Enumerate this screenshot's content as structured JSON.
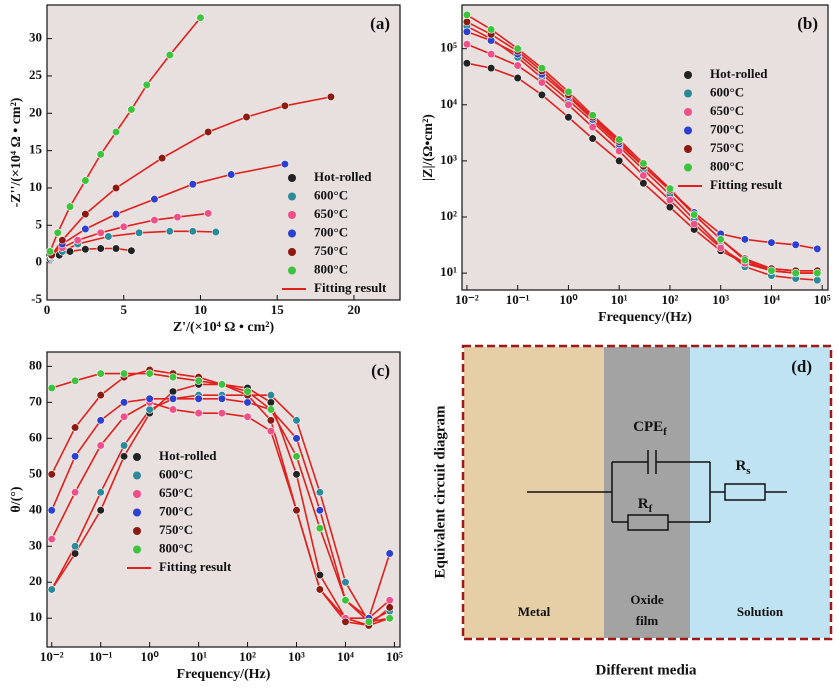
{
  "chart_data": [
    {
      "type": "scatter",
      "panel": "(a)",
      "x_label": "Z'/(×10⁴ Ω • cm²)",
      "y_label": "-Z''/(×10⁴ Ω • cm²)",
      "xlim": [
        0,
        23
      ],
      "ylim": [
        -5,
        34.5
      ],
      "xticks": [
        0,
        5,
        10,
        15,
        20
      ],
      "yticks": [
        -5,
        0,
        5,
        10,
        15,
        20,
        25,
        30
      ],
      "legend": "lower right",
      "fit_name": "Fitting result",
      "fit_color": "#e0201c",
      "series": [
        {
          "name": "Hot-rolled",
          "color": "#222222",
          "x": [
            0.2,
            0.8,
            1.5,
            2.5,
            3.5,
            4.5,
            5.5
          ],
          "y": [
            0.5,
            1.0,
            1.5,
            1.8,
            1.9,
            1.9,
            1.6
          ]
        },
        {
          "name": "600°C",
          "color": "#2a8a9a",
          "x": [
            0.3,
            1,
            2,
            4,
            6,
            8,
            9.5,
            11
          ],
          "y": [
            0.6,
            1.5,
            2.5,
            3.5,
            4,
            4.2,
            4.2,
            4.1
          ]
        },
        {
          "name": "650°C",
          "color": "#f0508a",
          "x": [
            0.3,
            1,
            2,
            3.5,
            5,
            7,
            8.5,
            10.5
          ],
          "y": [
            0.8,
            2,
            3,
            4,
            4.8,
            5.7,
            6.1,
            6.6
          ]
        },
        {
          "name": "700°C",
          "color": "#2b3fd0",
          "x": [
            0.3,
            1,
            2.5,
            4.5,
            7,
            9.5,
            12,
            15.5
          ],
          "y": [
            0.9,
            2.5,
            4.5,
            6.5,
            8.5,
            10.5,
            11.8,
            13.2
          ]
        },
        {
          "name": "750°C",
          "color": "#8b1a10",
          "x": [
            0.3,
            1,
            2.5,
            4.5,
            7.5,
            10.5,
            13,
            15.5,
            18.5
          ],
          "y": [
            1,
            3,
            6.5,
            10,
            14,
            17.5,
            19.5,
            21,
            22.2
          ]
        },
        {
          "name": "800°C",
          "color": "#3cc43c",
          "x": [
            0.2,
            0.7,
            1.5,
            2.5,
            3.5,
            4.5,
            5.5,
            6.5,
            8,
            10
          ],
          "y": [
            1.5,
            4,
            7.5,
            11,
            14.5,
            17.5,
            20.5,
            23.8,
            27.8,
            32.8
          ]
        }
      ]
    },
    {
      "type": "line",
      "panel": "(b)",
      "x_label": "Frequency/(Hz)",
      "y_label": "|Z|/(Ω•cm²)",
      "xlog": true,
      "ylog": true,
      "xlim": [
        0.008,
        130000
      ],
      "ylim": [
        5,
        600000
      ],
      "xticks": [
        {
          "value": 0.01,
          "label": "10⁻²"
        },
        {
          "value": 0.1,
          "label": "10⁻¹"
        },
        {
          "value": 1,
          "label": "10⁰"
        },
        {
          "value": 10,
          "label": "10¹"
        },
        {
          "value": 100,
          "label": "10²"
        },
        {
          "value": 1000,
          "label": "10³"
        },
        {
          "value": 10000,
          "label": "10⁴"
        },
        {
          "value": 100000,
          "label": "10⁵"
        }
      ],
      "yticks": [
        {
          "value": 10,
          "label": "10¹"
        },
        {
          "value": 100,
          "label": "10²"
        },
        {
          "value": 1000,
          "label": "10³"
        },
        {
          "value": 10000,
          "label": "10⁴"
        },
        {
          "value": 100000,
          "label": "10⁵"
        }
      ],
      "legend": "center right",
      "fit_name": "Fitting result",
      "fit_color": "#e0201c",
      "x": [
        0.01,
        0.03,
        0.1,
        0.3,
        1,
        3,
        10,
        30,
        100,
        300,
        1000,
        3000,
        10000,
        30000,
        80000
      ],
      "series": [
        {
          "name": "Hot-rolled",
          "color": "#222222",
          "values": [
            55000,
            45000,
            30000,
            15000,
            6000,
            2500,
            1000,
            400,
            150,
            60,
            25,
            15,
            12,
            11,
            11
          ]
        },
        {
          "name": "600°C",
          "color": "#2a8a9a",
          "values": [
            250000,
            150000,
            70000,
            30000,
            12000,
            5000,
            1800,
            700,
            250,
            90,
            30,
            13,
            9,
            8,
            7.5
          ]
        },
        {
          "name": "650°C",
          "color": "#f0508a",
          "values": [
            120000,
            80000,
            50000,
            25000,
            10000,
            4000,
            1500,
            550,
            200,
            75,
            28,
            15,
            11,
            10,
            10
          ]
        },
        {
          "name": "700°C",
          "color": "#2b3fd0",
          "values": [
            200000,
            140000,
            80000,
            35000,
            14000,
            5500,
            2000,
            800,
            300,
            120,
            50,
            40,
            35,
            32,
            27
          ]
        },
        {
          "name": "750°C",
          "color": "#8b1a10",
          "values": [
            300000,
            180000,
            90000,
            40000,
            15000,
            6000,
            2200,
            800,
            300,
            110,
            40,
            18,
            12,
            11,
            11
          ]
        },
        {
          "name": "800°C",
          "color": "#3cc43c",
          "values": [
            400000,
            220000,
            100000,
            45000,
            17000,
            6500,
            2400,
            900,
            320,
            110,
            40,
            17,
            11,
            10,
            10
          ]
        }
      ]
    },
    {
      "type": "line",
      "panel": "(c)",
      "x_label": "Frequency/(Hz)",
      "y_label": "θ/(°)",
      "xlog": true,
      "xlim": [
        0.008,
        130000
      ],
      "ylim": [
        2,
        84
      ],
      "xticks": [
        {
          "value": 0.01,
          "label": "10⁻²"
        },
        {
          "value": 0.1,
          "label": "10⁻¹"
        },
        {
          "value": 1,
          "label": "10⁰"
        },
        {
          "value": 10,
          "label": "10¹"
        },
        {
          "value": 100,
          "label": "10²"
        },
        {
          "value": 1000,
          "label": "10³"
        },
        {
          "value": 10000,
          "label": "10⁴"
        },
        {
          "value": 100000,
          "label": "10⁵"
        }
      ],
      "yticks": [
        10,
        20,
        30,
        40,
        50,
        60,
        70,
        80
      ],
      "legend": "lower left",
      "fit_name": "Fitting result",
      "fit_color": "#e0201c",
      "x": [
        0.01,
        0.03,
        0.1,
        0.3,
        1,
        3,
        10,
        30,
        100,
        300,
        1000,
        3000,
        10000,
        30000,
        80000
      ],
      "series": [
        {
          "name": "Hot-rolled",
          "color": "#222222",
          "values": [
            18,
            28,
            40,
            55,
            67,
            73,
            75,
            75,
            74,
            70,
            50,
            22,
            10,
            8,
            10
          ]
        },
        {
          "name": "600°C",
          "color": "#2a8a9a",
          "values": [
            18,
            30,
            45,
            58,
            68,
            71,
            72,
            72,
            72,
            72,
            65,
            45,
            20,
            9,
            12
          ]
        },
        {
          "name": "650°C",
          "color": "#f0508a",
          "values": [
            32,
            45,
            58,
            66,
            70,
            68,
            67,
            67,
            66,
            62,
            40,
            18,
            10,
            10,
            15
          ]
        },
        {
          "name": "700°C",
          "color": "#2b3fd0",
          "values": [
            40,
            55,
            65,
            70,
            71,
            71,
            71,
            71,
            70,
            68,
            60,
            40,
            15,
            10,
            28
          ]
        },
        {
          "name": "750°C",
          "color": "#8b1a10",
          "values": [
            50,
            63,
            72,
            77,
            79,
            78,
            77,
            75,
            72,
            65,
            40,
            18,
            9,
            8,
            13
          ]
        },
        {
          "name": "800°C",
          "color": "#3cc43c",
          "values": [
            74,
            76,
            78,
            78,
            78,
            77,
            76,
            75,
            73,
            68,
            55,
            35,
            15,
            9,
            10
          ]
        }
      ]
    }
  ],
  "circuit_diagram": {
    "panel": "(d)",
    "side_label": "Equivalent circuit diagram",
    "bottom_label": "Different media",
    "regions": {
      "metal": "Metal",
      "oxide": [
        "Oxide",
        "film"
      ],
      "solution": "Solution"
    },
    "elements": {
      "cpe": {
        "main": "CPE",
        "sub": "f"
      },
      "rf": {
        "main": "R",
        "sub": "f"
      },
      "rs": {
        "main": "R",
        "sub": "s"
      }
    }
  }
}
